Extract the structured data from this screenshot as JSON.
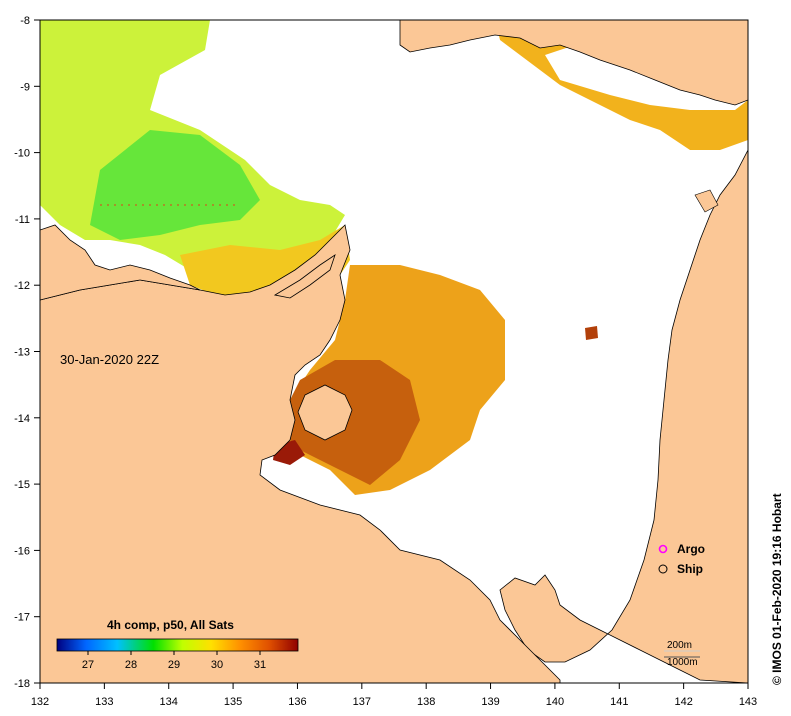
{
  "map": {
    "date_label": "30-Jan-2020 22Z",
    "credit": "© IMOS 01-Feb-2020 19:16 Hobart",
    "lon_ticks": [
      "132",
      "133",
      "134",
      "135",
      "136",
      "137",
      "138",
      "139",
      "140",
      "141",
      "142",
      "143"
    ],
    "lat_ticks": [
      "-8",
      "-9",
      "-10",
      "-11",
      "-12",
      "-13",
      "-14",
      "-15",
      "-16",
      "-17",
      "-18"
    ]
  },
  "legend": {
    "argo_label": "Argo",
    "ship_label": "Ship",
    "argo_color": "#ff00ff",
    "ship_color": "#000000"
  },
  "isobaths": {
    "label_200": "200m",
    "label_1000": "1000m"
  },
  "colorbar": {
    "title": "4h comp, p50, All Sats",
    "ticks": [
      "27",
      "28",
      "29",
      "30",
      "31"
    ],
    "colors": [
      "#000080",
      "#0066ff",
      "#00c0ff",
      "#00e000",
      "#c0ff00",
      "#ffe000",
      "#ff9000",
      "#e05000",
      "#900000"
    ]
  },
  "colors": {
    "land": "#fbc796",
    "no_data": "#ffffff"
  }
}
